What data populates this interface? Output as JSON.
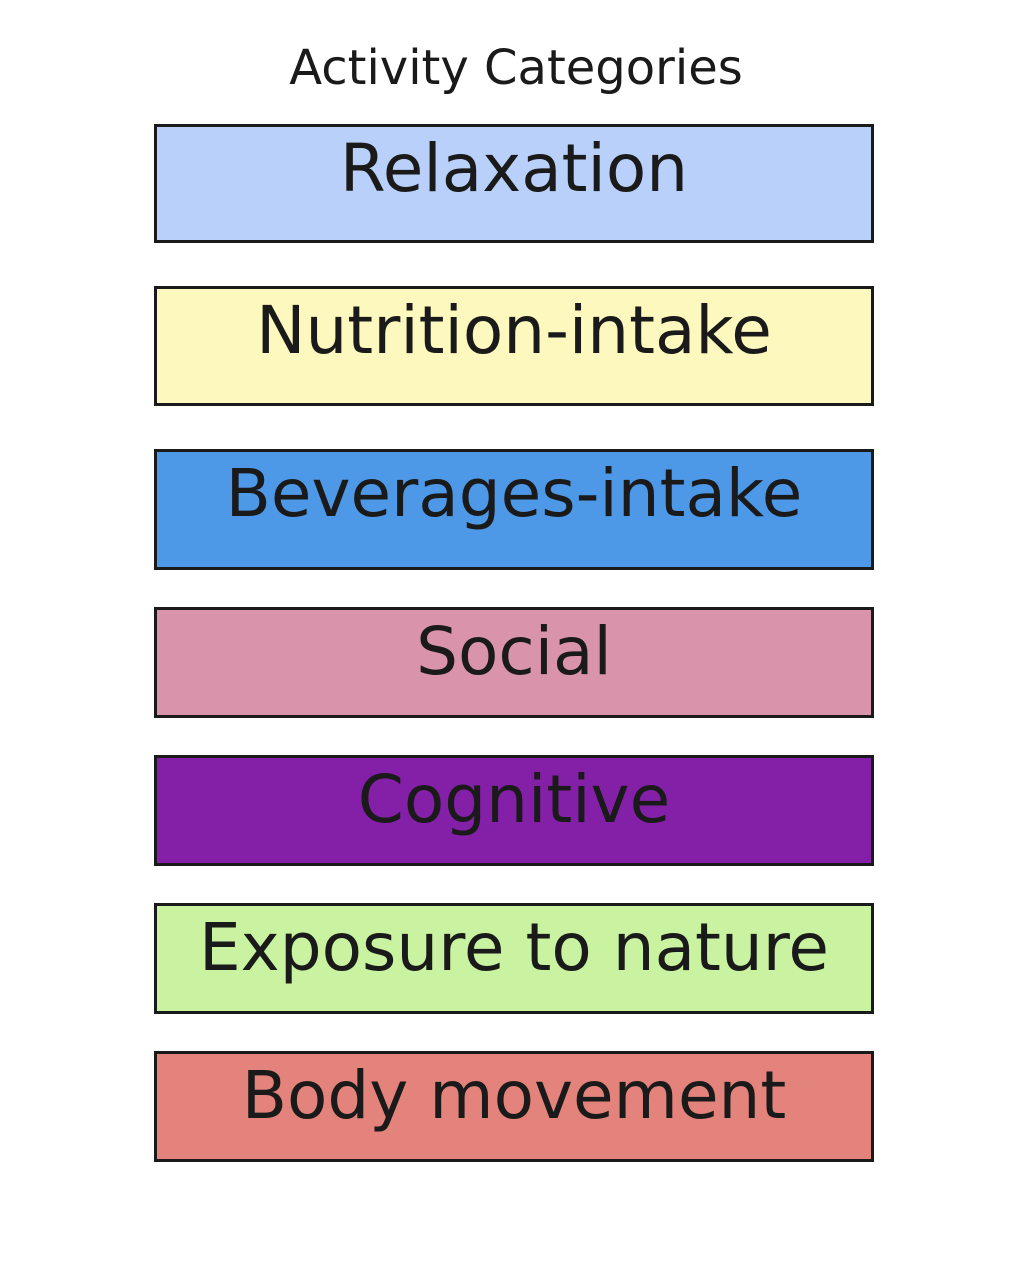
{
  "title": "Activity Categories",
  "categories": [
    {
      "label": "Relaxation",
      "color": "#b9d1fa"
    },
    {
      "label": "Nutrition-intake",
      "color": "#fdf8bd"
    },
    {
      "label": "Beverages-intake",
      "color": "#4e98e8"
    },
    {
      "label": "Social",
      "color": "#d993ab"
    },
    {
      "label": "Cognitive",
      "color": "#8420a8"
    },
    {
      "label": "Exposure to nature",
      "color": "#c9f3a0"
    },
    {
      "label": "Body movement",
      "color": "#e4837c"
    }
  ]
}
